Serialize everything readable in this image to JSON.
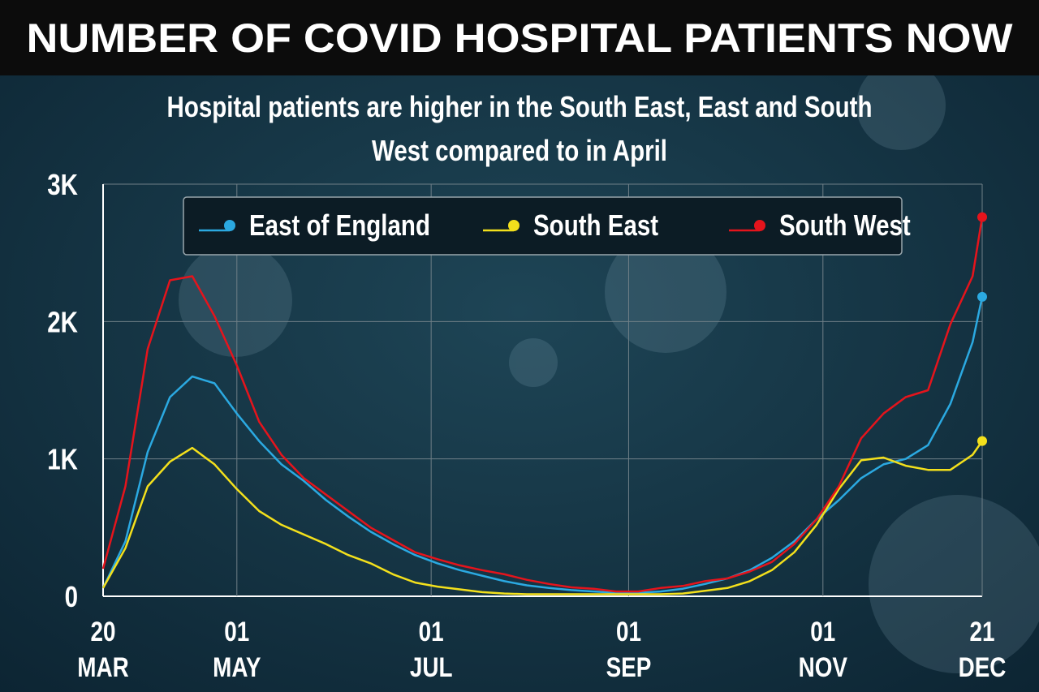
{
  "chart_data": {
    "type": "line",
    "title": "NUMBER OF COVID HOSPITAL PATIENTS NOW",
    "subtitle": "Hospital patients are higher in the South East, East and South West compared to in April",
    "x": [
      "20 MAR",
      "27 MAR",
      "03 APR",
      "10 APR",
      "17 APR",
      "24 APR",
      "01 MAY",
      "08 MAY",
      "15 MAY",
      "22 MAY",
      "29 MAY",
      "05 JUN",
      "12 JUN",
      "19 JUN",
      "26 JUN",
      "03 JUL",
      "10 JUL",
      "17 JUL",
      "24 JUL",
      "31 JUL",
      "07 AUG",
      "14 AUG",
      "21 AUG",
      "28 AUG",
      "04 SEP",
      "11 SEP",
      "18 SEP",
      "25 SEP",
      "02 OCT",
      "09 OCT",
      "16 OCT",
      "23 OCT",
      "30 OCT",
      "06 NOV",
      "13 NOV",
      "20 NOV",
      "27 NOV",
      "04 DEC",
      "11 DEC",
      "18 DEC",
      "21 DEC"
    ],
    "series": [
      {
        "name": "East of England",
        "color": "#2ba9e1",
        "values": [
          60,
          400,
          1050,
          1450,
          1600,
          1550,
          1330,
          1130,
          960,
          840,
          700,
          580,
          470,
          380,
          300,
          240,
          190,
          150,
          110,
          80,
          60,
          45,
          35,
          25,
          25,
          35,
          55,
          90,
          130,
          190,
          280,
          400,
          560,
          700,
          860,
          960,
          1000,
          1100,
          1400,
          1850,
          2180
        ]
      },
      {
        "name": "South East",
        "color": "#f3e01c",
        "values": [
          60,
          350,
          800,
          980,
          1080,
          960,
          780,
          620,
          520,
          450,
          380,
          300,
          240,
          160,
          100,
          70,
          50,
          30,
          20,
          15,
          15,
          15,
          15,
          15,
          15,
          15,
          20,
          40,
          60,
          110,
          190,
          320,
          520,
          780,
          990,
          1010,
          950,
          920,
          920,
          1030,
          1130
        ]
      },
      {
        "name": "South West",
        "color": "#e5141c",
        "values": [
          200,
          800,
          1800,
          2300,
          2330,
          2040,
          1680,
          1270,
          1030,
          860,
          740,
          620,
          500,
          410,
          320,
          270,
          225,
          190,
          160,
          120,
          90,
          65,
          55,
          35,
          35,
          60,
          75,
          110,
          130,
          180,
          250,
          380,
          560,
          800,
          1150,
          1330,
          1450,
          1500,
          1980,
          2330,
          2760
        ]
      }
    ],
    "xlim": [
      "20 MAR",
      "21 DEC"
    ],
    "xticks": [
      "20 MAR",
      "01 MAY",
      "01 JUL",
      "01 SEP",
      "01 NOV",
      "21 DEC"
    ],
    "ylim": [
      0,
      3000
    ],
    "yticks": [
      0,
      {
        "value": 1000,
        "label": "1K"
      },
      {
        "value": 2000,
        "label": "2K"
      },
      {
        "value": 3000,
        "label": "3K"
      }
    ],
    "grid": true
  }
}
